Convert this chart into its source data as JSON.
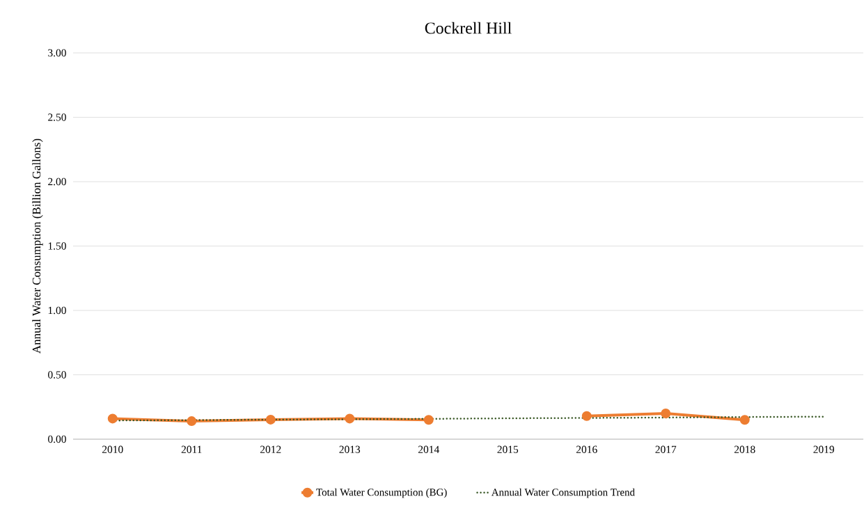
{
  "chart_data": {
    "type": "line",
    "title": "Cockrell Hill",
    "ylabel": "Annual Water Consumption (Billion Gallons)",
    "categories": [
      "2010",
      "2011",
      "2012",
      "2013",
      "2014",
      "2015",
      "2016",
      "2017",
      "2018",
      "2019"
    ],
    "series": [
      {
        "name": "Total Water Consumption (BG)",
        "color": "#ed7d31",
        "marker": "circle",
        "line_style": "solid",
        "values": [
          0.16,
          0.14,
          0.152,
          0.16,
          0.15,
          null,
          0.18,
          0.2,
          0.15,
          null
        ]
      },
      {
        "name": "Annual Water Consumption Trend",
        "color": "#375623",
        "marker": "none",
        "line_style": "dotted",
        "values": [
          0.145,
          0.148,
          0.152,
          0.155,
          0.158,
          0.162,
          0.165,
          0.168,
          0.172,
          0.175
        ]
      }
    ],
    "ylim": [
      0,
      3
    ],
    "yticks": [
      {
        "value": 0,
        "label": "0.00"
      },
      {
        "value": 0.5,
        "label": "0.50"
      },
      {
        "value": 1,
        "label": "1.00"
      },
      {
        "value": 1.5,
        "label": "1.50"
      },
      {
        "value": 2,
        "label": "2.00"
      },
      {
        "value": 2.5,
        "label": "2.50"
      },
      {
        "value": 3,
        "label": "3.00"
      }
    ],
    "grid": "y",
    "legend": "bottom"
  }
}
